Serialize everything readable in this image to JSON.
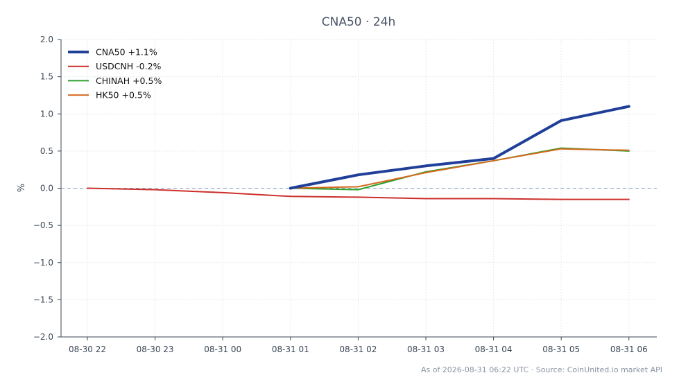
{
  "chart_data": {
    "type": "line",
    "title": "CNA50 · 24h",
    "ylabel": "%",
    "xlabel": "",
    "ylim": [
      -2.0,
      2.0
    ],
    "yticks": [
      2.0,
      1.5,
      1.0,
      0.5,
      0.0,
      -0.5,
      -1.0,
      -1.5,
      -2.0
    ],
    "ytick_labels": [
      "2.0",
      "1.5",
      "1.0",
      "0.5",
      "0.0",
      "−0.5",
      "−1.0",
      "−1.5",
      "−2.0"
    ],
    "categories": [
      "08-30 22",
      "08-30 23",
      "08-31 00",
      "08-31 01",
      "08-31 02",
      "08-31 03",
      "08-31 04",
      "08-31 05",
      "08-31 06"
    ],
    "grid": true,
    "zero_line": true,
    "legend_position": "top-left",
    "series": [
      {
        "name": "CNA50 +1.1%",
        "color": "#1f3f99",
        "width": 4,
        "values": [
          null,
          null,
          null,
          0.0,
          0.18,
          0.3,
          0.4,
          0.91,
          1.1
        ]
      },
      {
        "name": "USDCNH -0.2%",
        "color": "#cc2f2b",
        "width": 2,
        "values": [
          0.0,
          -0.02,
          -0.06,
          -0.11,
          -0.12,
          -0.14,
          -0.14,
          -0.15,
          -0.15
        ]
      },
      {
        "name": "CHINAH +0.5%",
        "color": "#2ca02c",
        "width": 2,
        "values": [
          null,
          null,
          null,
          0.0,
          -0.02,
          0.22,
          0.37,
          0.54,
          0.5
        ]
      },
      {
        "name": "HK50 +0.5%",
        "color": "#d4691e",
        "width": 2,
        "values": [
          null,
          null,
          null,
          0.0,
          0.02,
          0.21,
          0.37,
          0.53,
          0.51
        ]
      }
    ]
  },
  "footer": {
    "text": "As of 2026-08-31 06:22 UTC · Source: CoinUnited.io market API"
  }
}
